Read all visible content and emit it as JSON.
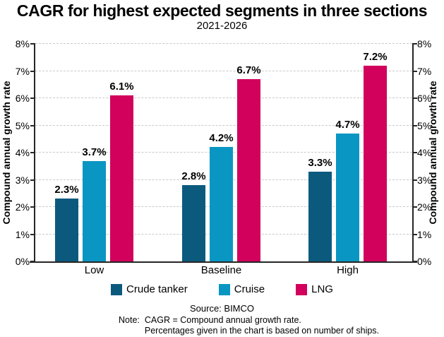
{
  "header": {
    "title": "CAGR for highest expected segments in three sections",
    "subtitle": "2021-2026"
  },
  "chart_data": {
    "type": "bar",
    "categories": [
      "Low",
      "Baseline",
      "High"
    ],
    "series": [
      {
        "name": "Crude tanker",
        "color": "#0B5A7E",
        "values": [
          2.3,
          2.8,
          3.3
        ],
        "labels": [
          "2.3%",
          "2.8%",
          "3.3%"
        ]
      },
      {
        "name": "Cruise",
        "color": "#0996C2",
        "values": [
          3.7,
          4.2,
          4.7
        ],
        "labels": [
          "3.7%",
          "4.2%",
          "4.7%"
        ]
      },
      {
        "name": "LNG",
        "color": "#D1015C",
        "values": [
          6.1,
          6.7,
          7.2
        ],
        "labels": [
          "6.1%",
          "6.7%",
          "7.2%"
        ]
      }
    ],
    "ylabel_left": "Compound annual growth rate",
    "ylabel_right": "Compound annual growth rate",
    "y_ticks": [
      "0%",
      "1%",
      "2%",
      "3%",
      "4%",
      "5%",
      "6%",
      "7%",
      "8%"
    ],
    "ylim": [
      0,
      8
    ],
    "grid": "horizontal-dashed",
    "legend_position": "bottom"
  },
  "source": "Source: BIMCO",
  "note": {
    "label": "Note:",
    "line1": "CAGR = Compound annual growth rate.",
    "line2": "Percentages given in the chart is based on number of ships."
  },
  "colors": {
    "axis": "#262626",
    "gridline": "#C9C9C9",
    "text": "#000000"
  }
}
